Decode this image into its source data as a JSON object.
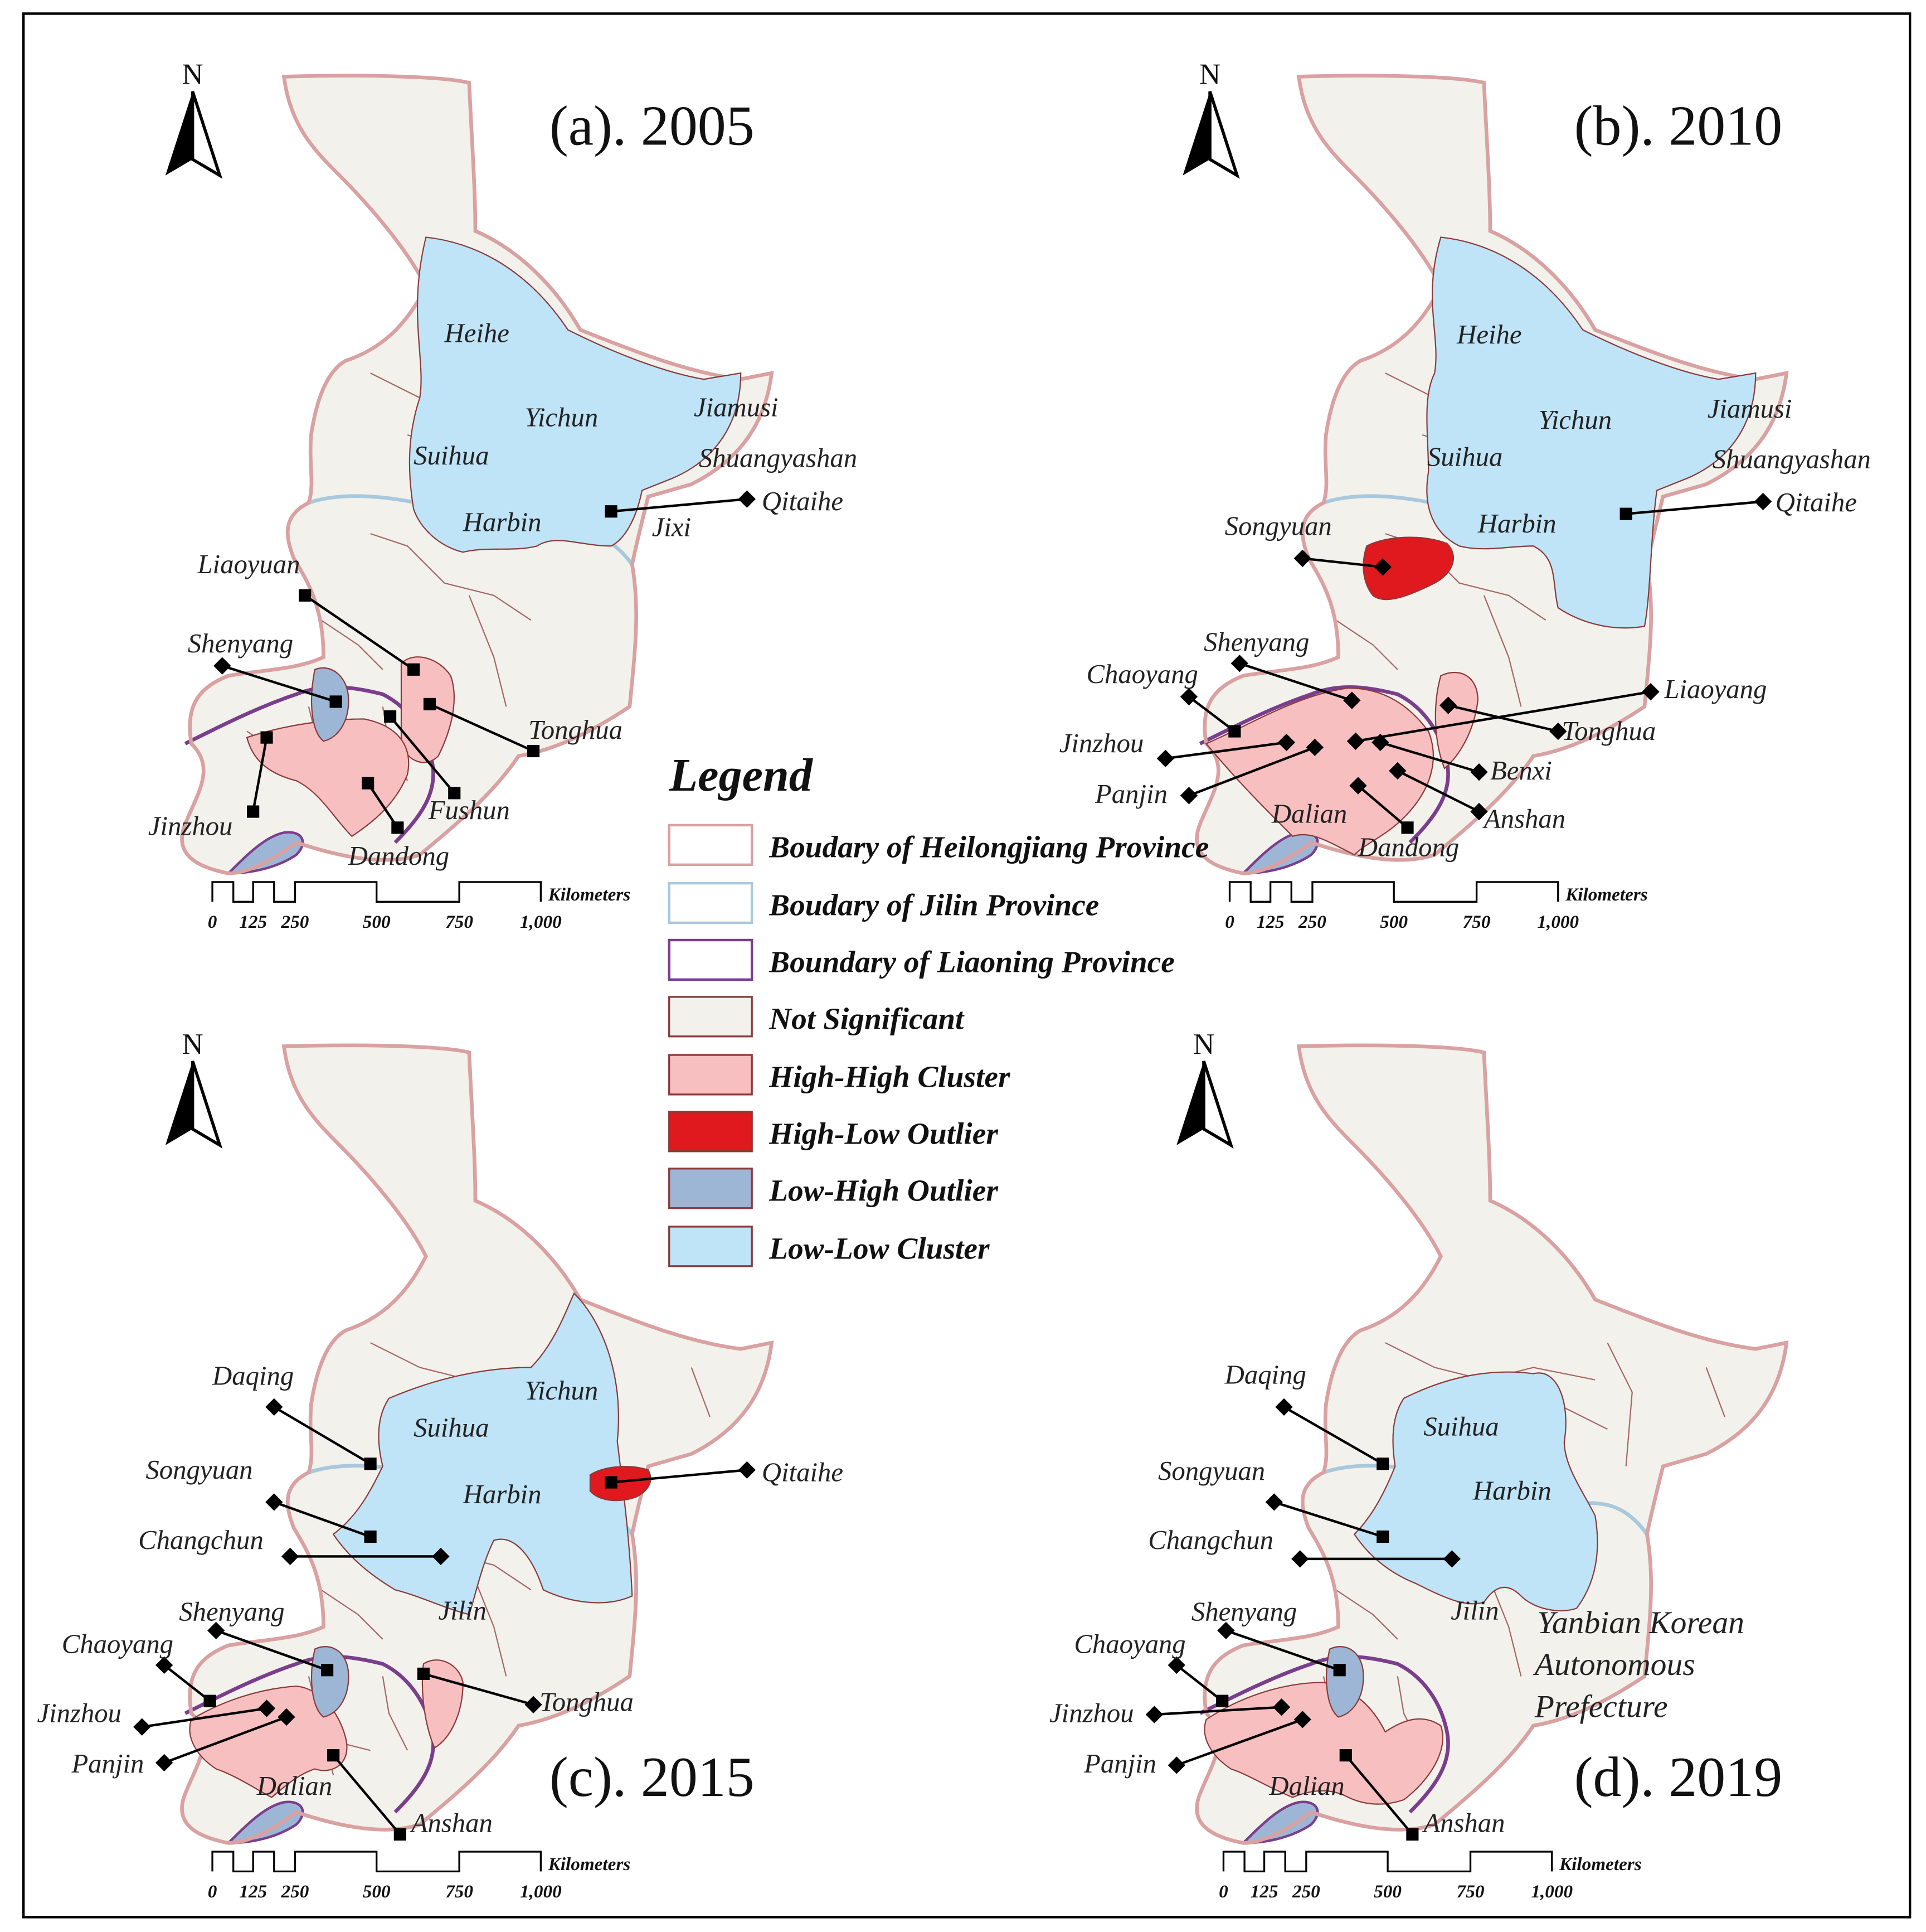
{
  "colors": {
    "heilongjiang_boundary": "#d9a1a1",
    "jilin_boundary": "#a9c8dc",
    "liaoning_boundary": "#7a3e8c",
    "not_significant": "#f2f1ec",
    "high_high": "#f8bfc0",
    "high_low": "#e0191f",
    "low_high": "#9db6d6",
    "low_low": "#bfe3f7",
    "inner_boundary": "#8a3a3a"
  },
  "north_label": "N",
  "scale_bar": {
    "ticks": [
      "0",
      "125",
      "250",
      "500",
      "750",
      "1,000"
    ],
    "unit": "Kilometers"
  },
  "legend": {
    "title": "Legend",
    "items": [
      {
        "label": "Boudary of Heilongjiang Province",
        "swatch": "heilongjiang"
      },
      {
        "label": "Boudary of Jilin Province",
        "swatch": "jilin"
      },
      {
        "label": "Boundary of Liaoning Province",
        "swatch": "liaoning"
      },
      {
        "label": "Not Significant",
        "swatch": "ns"
      },
      {
        "label": "High-High Cluster",
        "swatch": "hh"
      },
      {
        "label": "High-Low Outlier",
        "swatch": "hl"
      },
      {
        "label": "Low-High Outlier",
        "swatch": "lh"
      },
      {
        "label": "Low-Low Cluster",
        "swatch": "ll"
      }
    ]
  },
  "panels": [
    {
      "title": "(a). 2005",
      "labels": [
        "Heihe",
        "Yichun",
        "Jiamusi",
        "Suihua",
        "Shuangyashan",
        "Harbin",
        "Qitaihe",
        "Jixi",
        "Liaoyuan",
        "Shenyang",
        "Tonghua",
        "Fushun",
        "Jinzhou",
        "Dandong"
      ]
    },
    {
      "title": "(b). 2010",
      "labels": [
        "Heihe",
        "Yichun",
        "Jiamusi",
        "Suihua",
        "Shuangyashan",
        "Harbin",
        "Qitaihe",
        "Songyuan",
        "Shenyang",
        "Liaoyang",
        "Chaoyang",
        "Tonghua",
        "Jinzhou",
        "Benxi",
        "Panjin",
        "Anshan",
        "Dalian",
        "Dandong"
      ]
    },
    {
      "title": "(c). 2015",
      "labels": [
        "Daqing",
        "Yichun",
        "Suihua",
        "Qitaihe",
        "Harbin",
        "Songyuan",
        "Changchun",
        "Jilin",
        "Shenyang",
        "Chaoyang",
        "Tonghua",
        "Jinzhou",
        "Panjin",
        "Dalian",
        "Anshan"
      ]
    },
    {
      "title": "(d). 2019",
      "labels": [
        "Daqing",
        "Suihua",
        "Songyuan",
        "Harbin",
        "Changchun",
        "Jilin",
        "Yanbian Korean",
        "Autonomous",
        "Prefecture",
        "Shenyang",
        "Chaoyang",
        "Jinzhou",
        "Panjin",
        "Dalian",
        "Anshan"
      ]
    }
  ]
}
